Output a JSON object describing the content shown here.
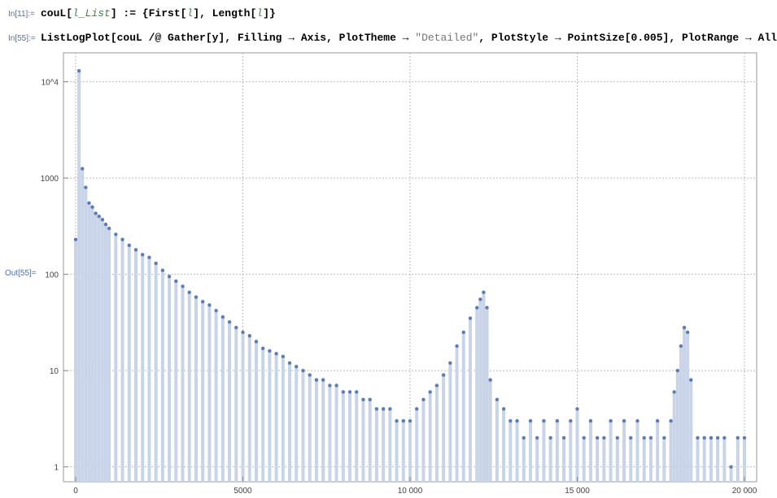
{
  "notebook": {
    "in1": {
      "label": "In[11]:=",
      "code_prefix": "couL[",
      "code_arg": "l_List",
      "code_mid": "] := {First[",
      "code_l1": "l",
      "code_mid2": "], Length[",
      "code_l2": "l",
      "code_end": "]}"
    },
    "in2": {
      "label": "In[55]:=",
      "code_a": "ListLogPlot[couL /@ Gather[y], Filling → Axis, PlotTheme → ",
      "code_str": "\"Detailed\"",
      "code_b": ", PlotStyle → PointSize[0.005], PlotRange → All"
    },
    "out": {
      "label": "Out[55]="
    }
  },
  "chart_data": {
    "type": "scatter",
    "scale": "log-y",
    "filling": "axis",
    "grid": true,
    "xlim": [
      0,
      20000
    ],
    "ylim": [
      0.7,
      20000
    ],
    "x_ticks": [
      "0",
      "5000",
      "10 000",
      "15 000",
      "20 000"
    ],
    "y_ticks": [
      "1",
      "10",
      "100",
      "1000",
      "10^4"
    ],
    "point_color": "#5a7dba",
    "fill_color": "#c9d4e8",
    "x": [
      0,
      100,
      200,
      300,
      400,
      500,
      600,
      700,
      800,
      900,
      1000,
      1200,
      1400,
      1600,
      1800,
      2000,
      2200,
      2400,
      2600,
      2800,
      3000,
      3200,
      3400,
      3600,
      3800,
      4000,
      4200,
      4400,
      4600,
      4800,
      5000,
      5200,
      5400,
      5600,
      5800,
      6000,
      6200,
      6400,
      6600,
      6800,
      7000,
      7200,
      7400,
      7600,
      7800,
      8000,
      8200,
      8400,
      8600,
      8800,
      9000,
      9200,
      9400,
      9600,
      9800,
      10000,
      10200,
      10400,
      10600,
      10800,
      11000,
      11200,
      11400,
      11600,
      11800,
      12000,
      12100,
      12200,
      12300,
      12400,
      12600,
      12800,
      13000,
      13200,
      13400,
      13600,
      13800,
      14000,
      14200,
      14400,
      14600,
      14800,
      15000,
      15200,
      15400,
      15600,
      15800,
      16000,
      16200,
      16400,
      16600,
      16800,
      17000,
      17200,
      17400,
      17600,
      17800,
      17900,
      18000,
      18100,
      18200,
      18300,
      18400,
      18600,
      18800,
      19000,
      19200,
      19400,
      19600,
      19800,
      20000
    ],
    "y": [
      230,
      13000,
      1250,
      800,
      550,
      500,
      430,
      400,
      370,
      330,
      300,
      260,
      230,
      200,
      180,
      160,
      150,
      130,
      110,
      95,
      85,
      75,
      65,
      58,
      52,
      48,
      42,
      36,
      32,
      28,
      25,
      23,
      20,
      17,
      16,
      15,
      14,
      12,
      11,
      10,
      9,
      8,
      8,
      7,
      7,
      6,
      6,
      6,
      5,
      5,
      4,
      4,
      4,
      3,
      3,
      3,
      4,
      5,
      6,
      7,
      9,
      12,
      18,
      25,
      35,
      45,
      55,
      65,
      45,
      8,
      5,
      4,
      3,
      3,
      2,
      3,
      2,
      3,
      2,
      3,
      2,
      3,
      4,
      2,
      3,
      2,
      2,
      3,
      2,
      3,
      2,
      3,
      2,
      2,
      3,
      2,
      3,
      6,
      10,
      18,
      28,
      25,
      8,
      2,
      2,
      2,
      2,
      2,
      1,
      2,
      2
    ]
  }
}
